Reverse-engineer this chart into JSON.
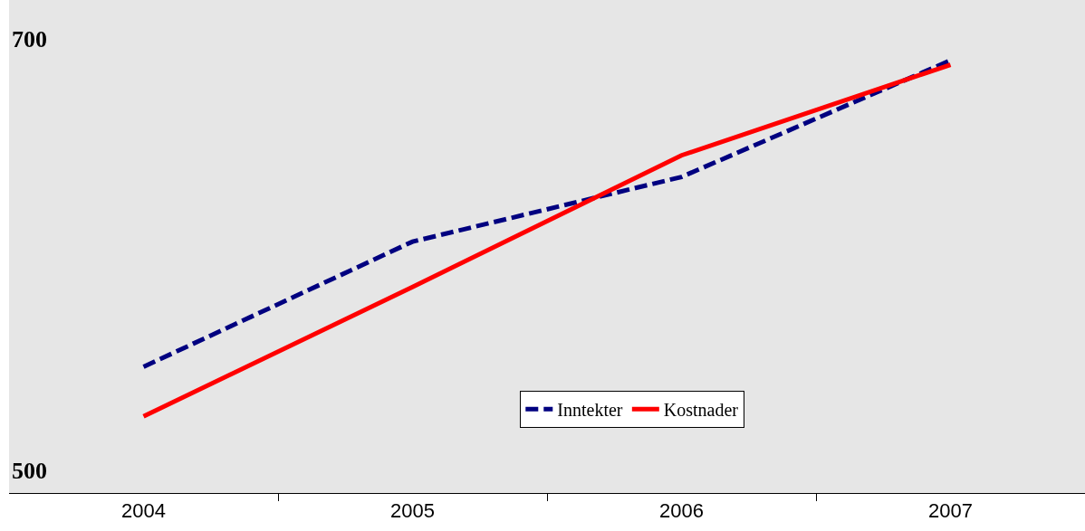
{
  "chart_data": {
    "type": "line",
    "categories": [
      "2004",
      "2005",
      "2006",
      "2007"
    ],
    "series": [
      {
        "name": "Inntekter",
        "color": "#000080",
        "line_style": "dashed",
        "values": [
          548,
          606,
          636,
          690
        ]
      },
      {
        "name": "Kostnader",
        "color": "#ff0000",
        "line_style": "solid",
        "values": [
          525,
          585,
          646,
          688
        ]
      }
    ],
    "ylim": [
      489.5,
      718
    ],
    "yticks": [
      500,
      700
    ],
    "grid": false,
    "legend": "bottom right",
    "marker": "none"
  }
}
